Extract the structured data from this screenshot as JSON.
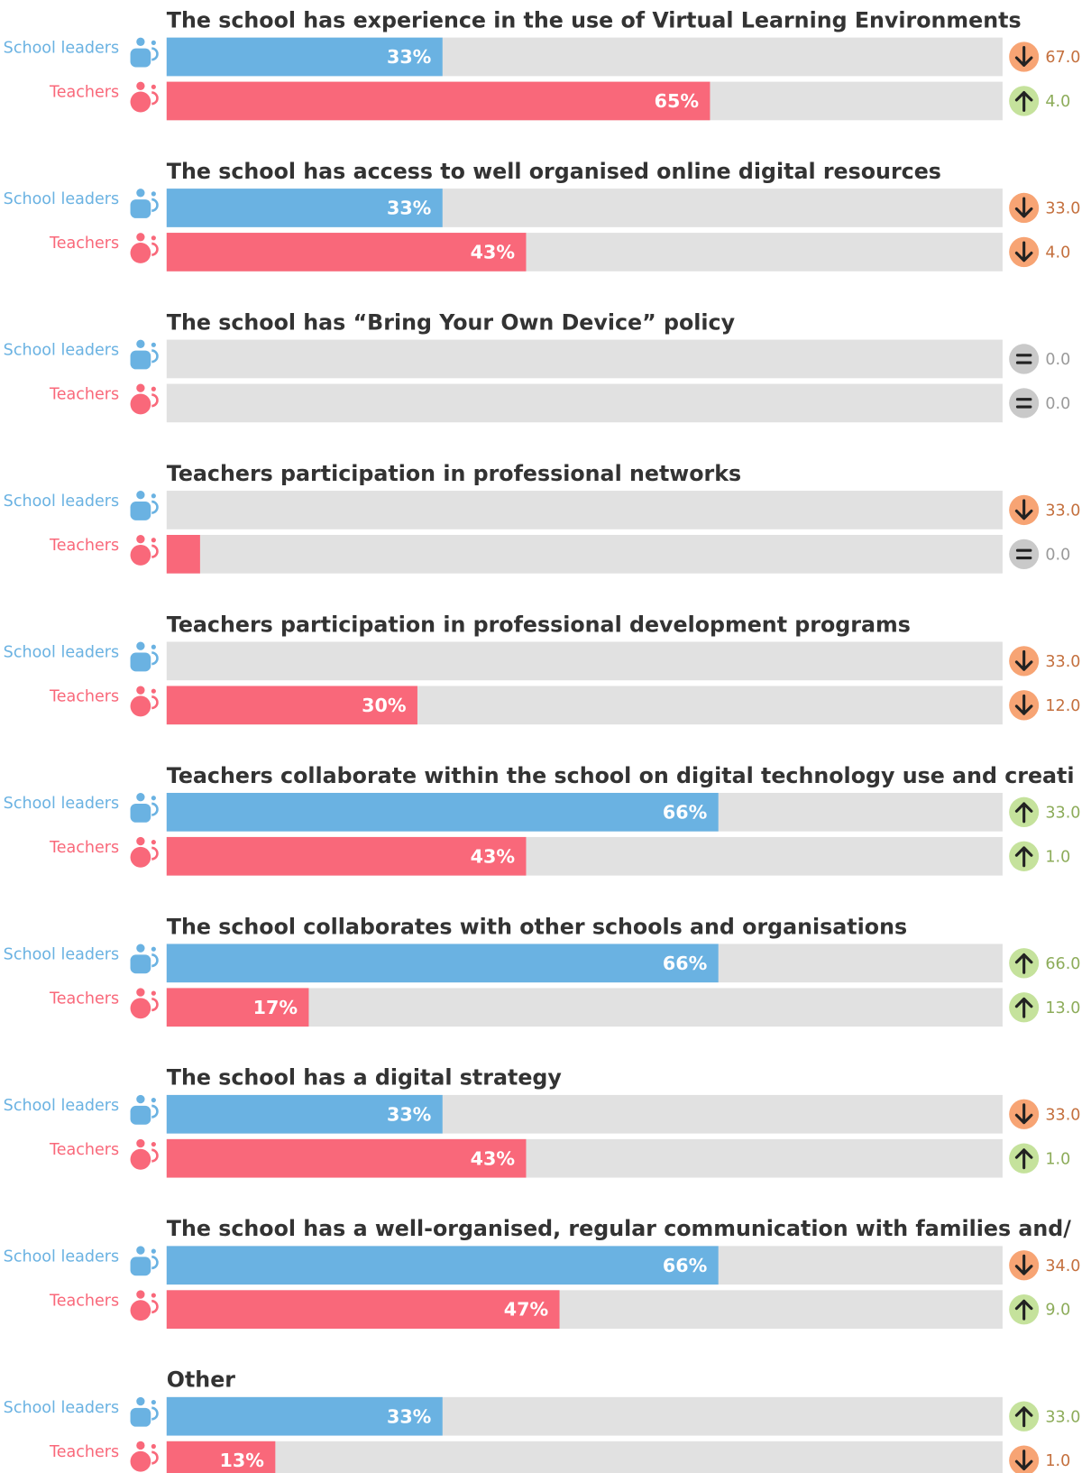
{
  "chart_data": {
    "type": "bar",
    "series": [
      {
        "name": "School leaders",
        "color": "#6ab2e2"
      },
      {
        "name": "Teachers",
        "color": "#f9687a"
      }
    ],
    "xlim": [
      0,
      100
    ],
    "change_colors": {
      "down": {
        "fill": "#f7a474",
        "text": "#c4703e"
      },
      "up": {
        "fill": "#c5e29c",
        "text": "#8dac5a"
      },
      "equal": {
        "fill": "#c9c9c9",
        "text": "#9a9a9a"
      }
    },
    "groups": [
      {
        "title": "The school has experience in the use of Virtual Learning Environments",
        "values": [
          33,
          65
        ],
        "value_labels": [
          "33%",
          "65%"
        ],
        "changes": [
          {
            "value": 67,
            "label": "67.0",
            "direction": "down"
          },
          {
            "value": 4,
            "label": "4.0",
            "direction": "up"
          }
        ]
      },
      {
        "title": "The school has access to well organised online digital resources",
        "values": [
          33,
          43
        ],
        "value_labels": [
          "33%",
          "43%"
        ],
        "changes": [
          {
            "value": 33,
            "label": "33.0",
            "direction": "down"
          },
          {
            "value": 4,
            "label": "4.0",
            "direction": "down"
          }
        ]
      },
      {
        "title": "The school has “Bring Your Own Device” policy",
        "values": [
          0,
          0
        ],
        "value_labels": [
          null,
          null
        ],
        "changes": [
          {
            "value": 0,
            "label": "0.0",
            "direction": "equal"
          },
          {
            "value": 0,
            "label": "0.0",
            "direction": "equal"
          }
        ]
      },
      {
        "title": "Teachers participation in professional networks",
        "values": [
          0,
          4
        ],
        "value_labels": [
          null,
          null
        ],
        "changes": [
          {
            "value": 33,
            "label": "33.0",
            "direction": "down"
          },
          {
            "value": 0,
            "label": "0.0",
            "direction": "equal"
          }
        ]
      },
      {
        "title": "Teachers participation in professional development programs",
        "values": [
          0,
          30
        ],
        "value_labels": [
          null,
          "30%"
        ],
        "changes": [
          {
            "value": 33,
            "label": "33.0",
            "direction": "down"
          },
          {
            "value": 12,
            "label": "12.0",
            "direction": "down"
          }
        ]
      },
      {
        "title": "Teachers collaborate within the school on digital technology use and creati",
        "values": [
          66,
          43
        ],
        "value_labels": [
          "66%",
          "43%"
        ],
        "changes": [
          {
            "value": 33,
            "label": "33.0",
            "direction": "up"
          },
          {
            "value": 1,
            "label": "1.0",
            "direction": "up"
          }
        ]
      },
      {
        "title": "The school collaborates with other schools and organisations",
        "values": [
          66,
          17
        ],
        "value_labels": [
          "66%",
          "17%"
        ],
        "changes": [
          {
            "value": 66,
            "label": "66.0",
            "direction": "up"
          },
          {
            "value": 13,
            "label": "13.0",
            "direction": "up"
          }
        ]
      },
      {
        "title": "The school has a digital strategy",
        "values": [
          33,
          43
        ],
        "value_labels": [
          "33%",
          "43%"
        ],
        "changes": [
          {
            "value": 33,
            "label": "33.0",
            "direction": "down"
          },
          {
            "value": 1,
            "label": "1.0",
            "direction": "up"
          }
        ]
      },
      {
        "title": "The school has a well-organised, regular communication with families and/",
        "values": [
          66,
          47
        ],
        "value_labels": [
          "66%",
          "47%"
        ],
        "changes": [
          {
            "value": 34,
            "label": "34.0",
            "direction": "down"
          },
          {
            "value": 9,
            "label": "9.0",
            "direction": "up"
          }
        ]
      },
      {
        "title": "Other",
        "values": [
          33,
          13
        ],
        "value_labels": [
          "33%",
          "13%"
        ],
        "changes": [
          {
            "value": 33,
            "label": "33.0",
            "direction": "up"
          },
          {
            "value": 1,
            "label": "1.0",
            "direction": "down"
          }
        ]
      }
    ]
  }
}
